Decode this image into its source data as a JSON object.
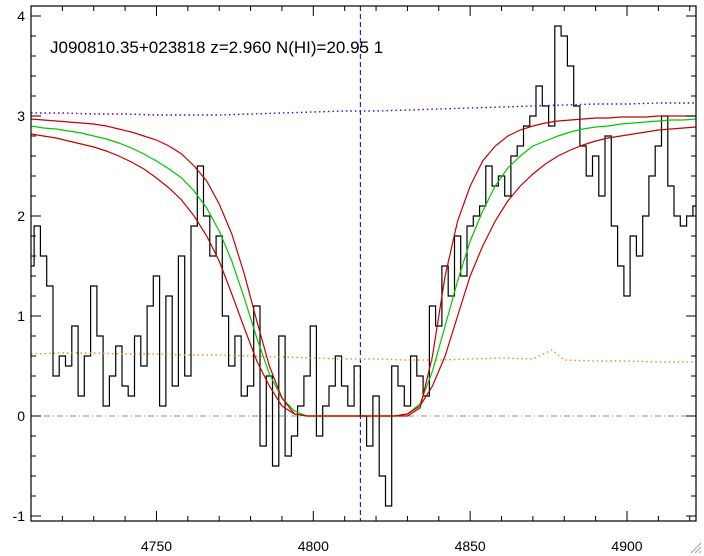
{
  "chart_data": {
    "type": "line",
    "title": "J090810.35+023818 z=2.960 N(HI)=20.95 1",
    "xlabel": "",
    "ylabel": "",
    "xlim": [
      4710,
      4922
    ],
    "ylim": [
      -1.05,
      4.1
    ],
    "x_ticks": [
      4750,
      4800,
      4850,
      4900
    ],
    "y_ticks": [
      -1,
      0,
      1,
      2,
      3,
      4
    ],
    "grid": false,
    "legend": "none",
    "vertical_marker_x": 4815,
    "zero_line_y": 0,
    "colors": {
      "flux": "#000000",
      "fit": "#00c800",
      "fit_bounds": "#c80000",
      "continuum": "#4a00d8",
      "error": "#f08a30",
      "marker": "#0000c8",
      "zero_line": "#8c8c8c"
    },
    "series": [
      {
        "x": [
          4710,
          4712,
          4714,
          4716,
          4718,
          4720,
          4722,
          4724,
          4726,
          4728,
          4730,
          4732,
          4734,
          4736,
          4738,
          4740,
          4742,
          4744,
          4746,
          4748,
          4750,
          4752,
          4754,
          4756,
          4758,
          4760,
          4762,
          4764,
          4766,
          4768,
          4770,
          4772,
          4774,
          4776,
          4778,
          4780,
          4782,
          4784,
          4786,
          4788,
          4790,
          4792,
          4794,
          4796,
          4798,
          4800,
          4802,
          4804,
          4806,
          4808,
          4810,
          4812,
          4814,
          4816,
          4818,
          4820,
          4822,
          4824,
          4826,
          4828,
          4830,
          4832,
          4834,
          4836,
          4838,
          4840,
          4842,
          4844,
          4846,
          4848,
          4850,
          4852,
          4854,
          4856,
          4858,
          4860,
          4862,
          4864,
          4866,
          4868,
          4870,
          4872,
          4874,
          4876,
          4878,
          4880,
          4882,
          4884,
          4886,
          4888,
          4890,
          4892,
          4894,
          4896,
          4898,
          4900,
          4902,
          4904,
          4906,
          4908,
          4910,
          4912,
          4914,
          4916,
          4918,
          4920,
          4922
        ],
        "values": [
          1.5,
          1.9,
          1.6,
          1.3,
          0.4,
          0.6,
          0.5,
          0.9,
          0.2,
          0.6,
          1.3,
          0.8,
          0.1,
          0.4,
          0.7,
          0.3,
          0.2,
          0.8,
          0.5,
          1.1,
          1.4,
          0.1,
          1.2,
          0.3,
          1.6,
          0.4,
          1.9,
          2.5,
          2.0,
          1.6,
          1.8,
          1.0,
          0.5,
          0.8,
          0.2,
          0.3,
          1.1,
          -0.3,
          0.4,
          -0.5,
          0.8,
          -0.4,
          -0.2,
          0.1,
          0.4,
          0.9,
          -0.2,
          0.1,
          0.3,
          0.6,
          0.3,
          0.1,
          0.5,
          0.0,
          -0.3,
          0.2,
          -0.6,
          -0.9,
          0.5,
          0.3,
          0.1,
          0.6,
          0.4,
          0.2,
          1.1,
          0.9,
          1.5,
          1.2,
          1.8,
          1.4,
          1.9,
          2.0,
          2.1,
          2.5,
          2.3,
          2.4,
          2.2,
          2.6,
          2.7,
          2.9,
          3.0,
          3.3,
          3.1,
          2.9,
          3.9,
          3.8,
          3.5,
          3.1,
          2.7,
          2.4,
          2.6,
          2.2,
          2.8,
          1.9,
          1.5,
          1.2,
          1.8,
          1.6,
          2.0,
          2.4,
          2.7,
          3.0,
          2.3,
          2.0,
          1.9,
          2.0,
          2.1
        ]
      },
      {
        "x": [
          4710,
          4714,
          4718,
          4722,
          4726,
          4730,
          4734,
          4738,
          4742,
          4746,
          4750,
          4754,
          4758,
          4762,
          4766,
          4770,
          4774,
          4778,
          4782,
          4786,
          4790,
          4794,
          4798,
          4802,
          4806,
          4810,
          4814,
          4818,
          4822,
          4826,
          4830,
          4834,
          4838,
          4842,
          4846,
          4850,
          4854,
          4858,
          4862,
          4866,
          4870,
          4874,
          4878,
          4882,
          4886,
          4890,
          4894,
          4898,
          4902,
          4906,
          4910,
          4914,
          4918,
          4922
        ],
        "values": [
          2.9,
          2.88,
          2.87,
          2.85,
          2.83,
          2.8,
          2.77,
          2.73,
          2.68,
          2.62,
          2.55,
          2.47,
          2.38,
          2.25,
          2.08,
          1.85,
          1.55,
          1.18,
          0.78,
          0.42,
          0.18,
          0.05,
          0.0,
          0.0,
          0.0,
          0.0,
          0.0,
          0.0,
          0.0,
          0.0,
          0.02,
          0.12,
          0.45,
          0.9,
          1.35,
          1.75,
          2.05,
          2.3,
          2.48,
          2.6,
          2.7,
          2.75,
          2.8,
          2.84,
          2.87,
          2.89,
          2.9,
          2.92,
          2.93,
          2.94,
          2.95,
          2.96,
          2.96,
          2.97
        ]
      },
      {
        "x": [
          4710,
          4714,
          4718,
          4722,
          4726,
          4730,
          4734,
          4738,
          4742,
          4746,
          4750,
          4754,
          4758,
          4762,
          4766,
          4770,
          4774,
          4778,
          4782,
          4786,
          4790,
          4794,
          4798,
          4802,
          4806,
          4810,
          4814,
          4818,
          4822,
          4826,
          4830,
          4834,
          4838,
          4842,
          4846,
          4850,
          4854,
          4858,
          4862,
          4866,
          4870,
          4874,
          4878,
          4882,
          4886,
          4890,
          4894,
          4898,
          4902,
          4906,
          4910,
          4914,
          4918,
          4922
        ],
        "values": [
          2.97,
          2.96,
          2.95,
          2.94,
          2.93,
          2.92,
          2.9,
          2.87,
          2.84,
          2.8,
          2.76,
          2.7,
          2.62,
          2.5,
          2.35,
          2.12,
          1.82,
          1.42,
          0.95,
          0.5,
          0.18,
          0.02,
          0.0,
          0.0,
          0.0,
          0.0,
          0.0,
          0.0,
          0.0,
          0.0,
          0.0,
          0.08,
          0.6,
          1.4,
          1.95,
          2.3,
          2.55,
          2.7,
          2.8,
          2.86,
          2.9,
          2.93,
          2.95,
          2.96,
          2.97,
          2.98,
          2.98,
          2.99,
          2.99,
          2.99,
          3.0,
          3.0,
          3.0,
          3.0
        ]
      },
      {
        "x": [
          4710,
          4714,
          4718,
          4722,
          4726,
          4730,
          4734,
          4738,
          4742,
          4746,
          4750,
          4754,
          4758,
          4762,
          4766,
          4770,
          4774,
          4778,
          4782,
          4786,
          4790,
          4794,
          4798,
          4802,
          4806,
          4810,
          4814,
          4818,
          4822,
          4826,
          4830,
          4834,
          4838,
          4842,
          4846,
          4850,
          4854,
          4858,
          4862,
          4866,
          4870,
          4874,
          4878,
          4882,
          4886,
          4890,
          4894,
          4898,
          4902,
          4906,
          4910,
          4914,
          4918,
          4922
        ],
        "values": [
          2.82,
          2.8,
          2.78,
          2.75,
          2.72,
          2.69,
          2.65,
          2.6,
          2.54,
          2.47,
          2.38,
          2.28,
          2.16,
          2.0,
          1.8,
          1.55,
          1.22,
          0.88,
          0.55,
          0.3,
          0.1,
          0.02,
          0.0,
          0.0,
          0.0,
          0.0,
          0.0,
          0.0,
          0.0,
          0.0,
          0.02,
          0.1,
          0.3,
          0.6,
          1.0,
          1.4,
          1.7,
          1.95,
          2.15,
          2.3,
          2.42,
          2.52,
          2.6,
          2.66,
          2.71,
          2.75,
          2.78,
          2.8,
          2.82,
          2.84,
          2.86,
          2.87,
          2.88,
          2.89
        ]
      },
      {
        "x": [
          4710,
          4720,
          4730,
          4740,
          4750,
          4760,
          4770,
          4780,
          4790,
          4800,
          4810,
          4820,
          4830,
          4840,
          4850,
          4860,
          4870,
          4880,
          4890,
          4900,
          4910,
          4922
        ],
        "values": [
          3.03,
          3.03,
          3.02,
          3.02,
          3.01,
          3.01,
          3.01,
          3.02,
          3.03,
          3.04,
          3.05,
          3.05,
          3.06,
          3.07,
          3.08,
          3.09,
          3.1,
          3.11,
          3.12,
          3.12,
          3.13,
          3.13
        ]
      },
      {
        "x": [
          4710,
          4720,
          4730,
          4740,
          4750,
          4760,
          4770,
          4780,
          4790,
          4800,
          4810,
          4820,
          4830,
          4840,
          4850,
          4860,
          4870,
          4876,
          4880,
          4890,
          4900,
          4910,
          4922
        ],
        "values": [
          0.62,
          0.63,
          0.63,
          0.62,
          0.62,
          0.61,
          0.61,
          0.6,
          0.59,
          0.58,
          0.57,
          0.57,
          0.56,
          0.56,
          0.57,
          0.58,
          0.57,
          0.66,
          0.56,
          0.55,
          0.55,
          0.54,
          0.54
        ]
      }
    ]
  }
}
